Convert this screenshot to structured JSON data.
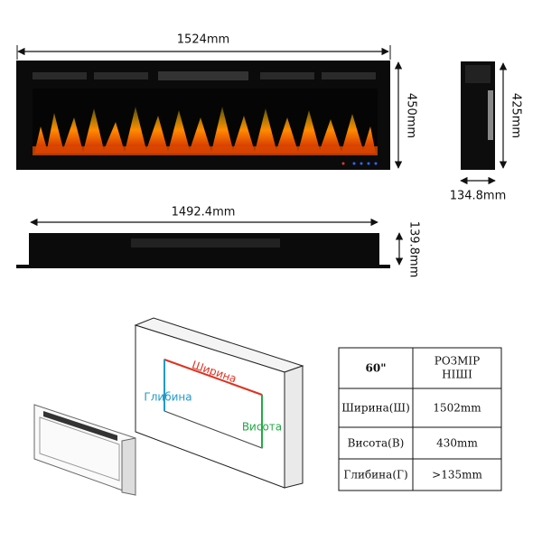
{
  "front": {
    "width": "1524mm",
    "height": "450mm"
  },
  "side": {
    "height": "425mm",
    "depth": "134.8mm"
  },
  "bottom": {
    "width": "1492.4mm",
    "height": "139.8mm"
  },
  "niche": {
    "width": "Ширина",
    "depth": "Глибина",
    "height": "Висота"
  },
  "table": {
    "size": "60\"",
    "header": [
      "РОЗМІР",
      "НІШІ"
    ],
    "rows": [
      [
        "Ширина(Ш)",
        "1502mm"
      ],
      [
        "Висота(В)",
        "430mm"
      ],
      [
        "Глибина(Г)",
        ">135mm"
      ]
    ]
  }
}
